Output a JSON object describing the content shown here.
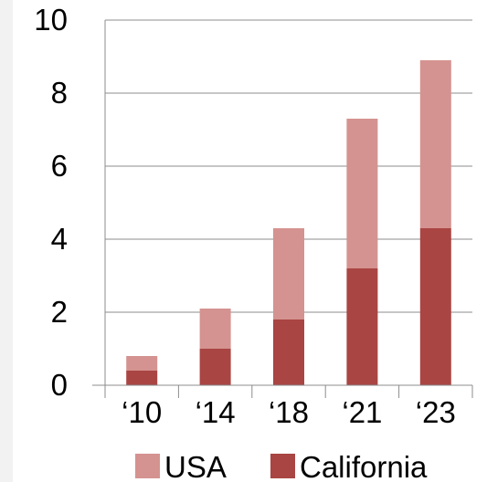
{
  "chart_data": {
    "type": "bar",
    "stacked": true,
    "categories": [
      "‘10",
      "‘14",
      "‘18",
      "‘21",
      "‘23"
    ],
    "series": [
      {
        "name": "California",
        "values": [
          0.4,
          1.0,
          1.8,
          3.2,
          4.3
        ],
        "color": "#a94543"
      },
      {
        "name": "USA",
        "values": [
          0.4,
          1.1,
          2.5,
          4.1,
          4.6
        ],
        "color": "#d49390"
      }
    ],
    "totals": [
      0.8,
      2.1,
      4.3,
      7.3,
      8.9
    ],
    "ylim": [
      0,
      10
    ],
    "yticks": [
      0,
      2,
      4,
      6,
      8,
      10
    ],
    "grid": true,
    "legend": {
      "position": "bottom",
      "order": [
        "USA",
        "California"
      ]
    },
    "title": "",
    "xlabel": "",
    "ylabel": ""
  }
}
